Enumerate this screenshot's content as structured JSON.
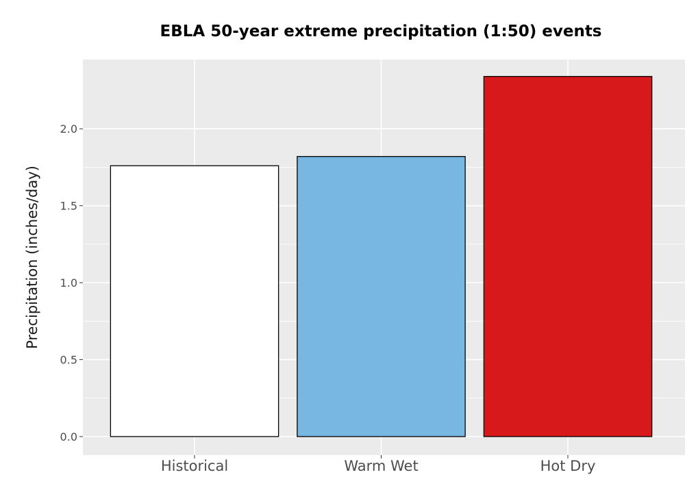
{
  "chart_data": {
    "type": "bar",
    "title": "EBLA 50-year extreme precipitation (1:50) events",
    "xlabel": "",
    "ylabel": "Precipitation (inches/day)",
    "categories": [
      "Historical",
      "Warm Wet",
      "Hot Dry"
    ],
    "values": [
      1.76,
      1.82,
      2.34
    ],
    "bar_colors": [
      "#ffffff",
      "#78b7e1",
      "#d7191c"
    ],
    "bar_outline": "#000000",
    "ylim": [
      -0.12,
      2.45
    ],
    "yticks": [
      0.0,
      0.5,
      1.0,
      1.5,
      2.0
    ],
    "ytick_labels": [
      "0.0",
      "0.5",
      "1.0",
      "1.5",
      "2.0"
    ],
    "grid": true,
    "legend": "none",
    "panel_background": "#ebebeb",
    "grid_color": "#ffffff"
  }
}
